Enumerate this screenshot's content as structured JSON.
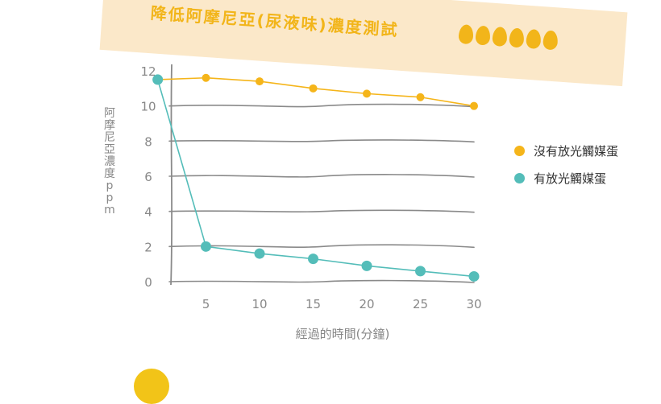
{
  "header": {
    "title": "降低阿摩尼亞(尿液味)濃度測試",
    "egg_count": 6
  },
  "colors": {
    "banner": "#fbe8c9",
    "accent_yellow": "#f2b51a",
    "series_without": "#f5b51a",
    "series_with": "#54bdb9",
    "grid": "#8a8a8a"
  },
  "chart_data": {
    "type": "line",
    "title": "降低阿摩尼亞(尿液味)濃度測試",
    "xlabel": "經過的時間(分鐘)",
    "ylabel": "阿摩尼亞濃度ppm",
    "xlim": [
      0,
      30
    ],
    "ylim": [
      0,
      12
    ],
    "xticks": [
      5,
      10,
      15,
      20,
      25,
      30
    ],
    "yticks": [
      0,
      2,
      4,
      6,
      8,
      10,
      12
    ],
    "grid": true,
    "legend_position": "right",
    "series": [
      {
        "name": "沒有放光觸媒蛋",
        "color": "#f5b51a",
        "x": [
          0.5,
          5,
          10,
          15,
          20,
          25,
          30
        ],
        "values": [
          11.5,
          11.6,
          11.4,
          11.0,
          10.7,
          10.5,
          10.0
        ]
      },
      {
        "name": "有放光觸媒蛋",
        "color": "#54bdb9",
        "x": [
          0.5,
          5,
          10,
          15,
          20,
          25,
          30
        ],
        "values": [
          11.5,
          2.0,
          1.6,
          1.3,
          0.9,
          0.6,
          0.3
        ]
      }
    ]
  }
}
